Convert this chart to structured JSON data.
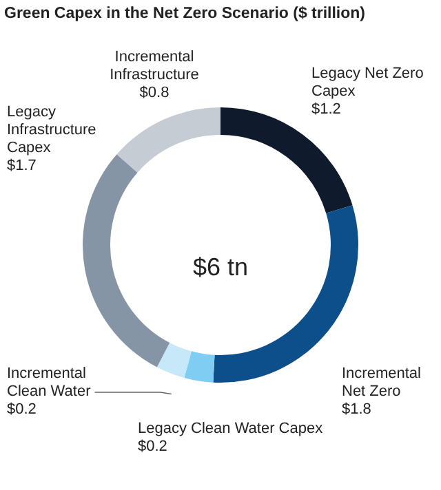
{
  "chart_data": {
    "type": "donut",
    "title": "Green Capex in the Net Zero Scenario ($ trillion)",
    "categories": [
      "Legacy Net Zero Capex",
      "Incremental Net Zero",
      "Legacy Clean Water Capex",
      "Incremental Clean Water",
      "Legacy Infrastructure Capex",
      "Incremental Infrastructure"
    ],
    "values": [
      1.2,
      1.8,
      0.2,
      0.2,
      1.7,
      0.8
    ],
    "value_labels": [
      "$1.2",
      "$1.8",
      "$0.2",
      "$0.2",
      "$1.7",
      "$0.8"
    ],
    "colors": [
      "#0f1b2c",
      "#0c4f8b",
      "#80cdf3",
      "#c6e8f8",
      "#8595a6",
      "#c5ccd4"
    ],
    "annotations": [
      "$6 tn"
    ]
  }
}
